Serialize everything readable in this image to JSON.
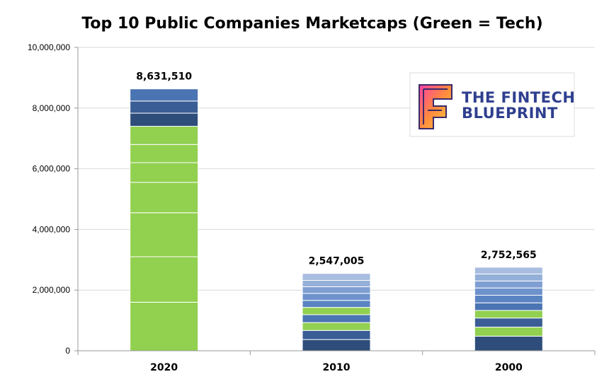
{
  "chart_data": {
    "type": "bar",
    "stacked": true,
    "title": "Top 10 Public Companies Marketcaps (Green = Tech)",
    "xlabel": "",
    "ylabel": "",
    "ylim": [
      0,
      10000000
    ],
    "yticks": [
      0,
      2000000,
      4000000,
      6000000,
      8000000,
      10000000
    ],
    "ytick_labels": [
      "0",
      "2,000,000",
      "4,000,000",
      "6,000,000",
      "8,000,000",
      "10,000,000"
    ],
    "grid": true,
    "categories": [
      "2020",
      "2010",
      "2000"
    ],
    "totals": [
      8631510,
      2547005,
      2752565
    ],
    "total_labels": [
      "8,631,510",
      "2,547,005",
      "2,752,565"
    ],
    "stacks": [
      {
        "category": "2020",
        "segments": [
          {
            "value": 1600000,
            "tech": true
          },
          {
            "value": 1500000,
            "tech": true
          },
          {
            "value": 1450000,
            "tech": true
          },
          {
            "value": 1000000,
            "tech": true
          },
          {
            "value": 650000,
            "tech": true
          },
          {
            "value": 600000,
            "tech": true
          },
          {
            "value": 600000,
            "tech": true
          },
          {
            "value": 431510,
            "tech": false
          },
          {
            "value": 400000,
            "tech": false
          },
          {
            "value": 400000,
            "tech": false
          }
        ]
      },
      {
        "category": "2010",
        "segments": [
          {
            "value": 370000,
            "tech": false
          },
          {
            "value": 300000,
            "tech": false
          },
          {
            "value": 260000,
            "tech": true
          },
          {
            "value": 260000,
            "tech": false
          },
          {
            "value": 240000,
            "tech": true
          },
          {
            "value": 230000,
            "tech": false
          },
          {
            "value": 230000,
            "tech": false
          },
          {
            "value": 220000,
            "tech": false
          },
          {
            "value": 210000,
            "tech": false
          },
          {
            "value": 227005,
            "tech": false
          }
        ]
      },
      {
        "category": "2000",
        "segments": [
          {
            "value": 480000,
            "tech": false
          },
          {
            "value": 300000,
            "tech": true
          },
          {
            "value": 300000,
            "tech": false
          },
          {
            "value": 250000,
            "tech": true
          },
          {
            "value": 250000,
            "tech": false
          },
          {
            "value": 250000,
            "tech": false
          },
          {
            "value": 240000,
            "tech": false
          },
          {
            "value": 230000,
            "tech": false
          },
          {
            "value": 230000,
            "tech": false
          },
          {
            "value": 222565,
            "tech": false
          }
        ]
      }
    ]
  },
  "colors": {
    "tech": "#92d050",
    "non_tech_shades": [
      "#2e4d7b",
      "#3a5d96",
      "#4a74b2",
      "#5a83c2",
      "#6e92cc",
      "#7f9fd2",
      "#94afd8",
      "#a8bddf",
      "#b9cbe6",
      "#c8d6ec"
    ],
    "grid": "#d9d9d9",
    "axis": "#9a9a9a",
    "logo_text": "#2f3f8f"
  },
  "logo": {
    "line1": "THE FINTECH",
    "line2": "BLUEPRINT",
    "icon": "letter-f-gradient-icon"
  }
}
